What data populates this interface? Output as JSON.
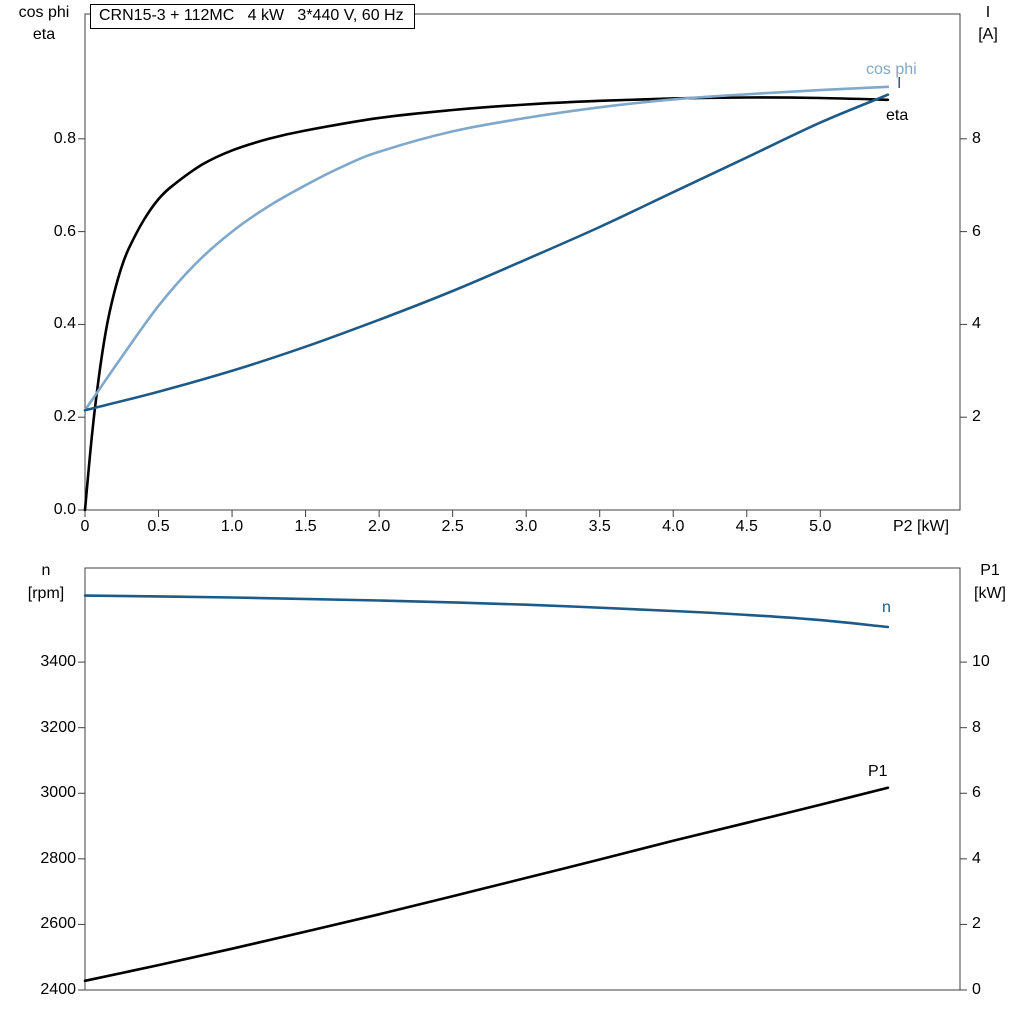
{
  "title_box": {
    "text": "CRN15-3 + 112MC   4 kW   3*440 V, 60 Hz"
  },
  "colors": {
    "black": "#000000",
    "dark_blue": "#1d5a87",
    "light_blue": "#7fa8cb",
    "frame": "#404040"
  },
  "labels": {
    "top_left_1": "cos phi",
    "top_left_2": "eta",
    "top_right_1": "I",
    "top_right_2": "[A]",
    "bottom_left_1": "n",
    "bottom_left_2": "[rpm]",
    "bottom_right_1": "P1",
    "bottom_right_2": "[kW]",
    "x_axis": "P2 [kW]",
    "curve_cos_phi": "cos phi",
    "curve_I": "I",
    "curve_eta": "eta",
    "curve_n": "n",
    "curve_P1": "P1"
  },
  "chart_data": [
    {
      "type": "line",
      "title": "CRN15-3 + 112MC   4 kW   3*440 V, 60 Hz",
      "xlabel": "P2 [kW]",
      "x_range": [
        0,
        5.95
      ],
      "x_ticks": [
        0,
        0.5,
        1,
        1.5,
        2,
        2.5,
        3,
        3.5,
        4,
        4.5,
        5
      ],
      "x_tick_labels": [
        "0",
        "0.5",
        "1.0",
        "1.5",
        "2.0",
        "2.5",
        "3.0",
        "3.5",
        "4.0",
        "4.5",
        "5.0"
      ],
      "left_axis": {
        "label": "cos phi / eta",
        "range": [
          0,
          1.069
        ],
        "ticks": [
          0,
          0.2,
          0.4,
          0.6,
          0.8
        ],
        "tick_labels": [
          "0.0",
          "0.2",
          "0.4",
          "0.6",
          "0.8"
        ]
      },
      "right_axis": {
        "label": "I [A]",
        "range": [
          0,
          10.69
        ],
        "ticks": [
          2,
          4,
          6,
          8
        ],
        "tick_labels": [
          "2",
          "4",
          "6",
          "8"
        ]
      },
      "grid": false,
      "legend_position": "labels-at-line-ends",
      "series": [
        {
          "name": "eta",
          "axis": "left",
          "color_key": "black",
          "x": [
            0,
            0.05,
            0.1,
            0.15,
            0.2,
            0.25,
            0.3,
            0.4,
            0.5,
            0.6,
            0.8,
            1.0,
            1.25,
            1.5,
            2.0,
            2.5,
            3.0,
            3.5,
            4.0,
            4.5,
            5.0,
            5.46
          ],
          "y": [
            0,
            0.17,
            0.3,
            0.4,
            0.47,
            0.525,
            0.565,
            0.625,
            0.67,
            0.7,
            0.745,
            0.775,
            0.8,
            0.818,
            0.845,
            0.862,
            0.874,
            0.882,
            0.887,
            0.889,
            0.888,
            0.884
          ]
        },
        {
          "name": "cos phi",
          "axis": "left",
          "color_key": "light_blue",
          "x": [
            0,
            0.25,
            0.5,
            0.75,
            1.0,
            1.25,
            1.5,
            1.75,
            2.0,
            2.5,
            3.0,
            3.5,
            4.0,
            4.5,
            5.0,
            5.46
          ],
          "y": [
            0.215,
            0.33,
            0.44,
            0.53,
            0.6,
            0.655,
            0.7,
            0.74,
            0.772,
            0.816,
            0.845,
            0.868,
            0.885,
            0.896,
            0.905,
            0.912
          ]
        },
        {
          "name": "I",
          "axis": "right",
          "color_key": "dark_blue",
          "x": [
            0,
            0.5,
            1.0,
            1.5,
            2.0,
            2.5,
            3.0,
            3.5,
            4.0,
            4.5,
            5.0,
            5.46
          ],
          "y": [
            2.15,
            2.55,
            3.0,
            3.52,
            4.1,
            4.72,
            5.4,
            6.1,
            6.85,
            7.6,
            8.35,
            8.95
          ]
        }
      ]
    },
    {
      "type": "line",
      "title": "",
      "xlabel": "",
      "x_range": [
        0,
        5.95
      ],
      "x_ticks": [],
      "x_tick_labels": [],
      "left_axis": {
        "label": "n [rpm]",
        "range": [
          2400,
          3687
        ],
        "ticks": [
          2400,
          2600,
          2800,
          3000,
          3200,
          3400
        ],
        "tick_labels": [
          "2400",
          "2600",
          "2800",
          "3000",
          "3200",
          "3400"
        ]
      },
      "right_axis": {
        "label": "P1 [kW]",
        "range": [
          0,
          12.87
        ],
        "ticks": [
          0,
          2,
          4,
          6,
          8,
          10
        ],
        "tick_labels": [
          "0",
          "2",
          "4",
          "6",
          "8",
          "10"
        ]
      },
      "grid": false,
      "legend_position": "labels-at-line-ends",
      "series": [
        {
          "name": "n",
          "axis": "left",
          "color_key": "dark_blue",
          "x": [
            0,
            1,
            2,
            3,
            4,
            4.5,
            5,
            5.46
          ],
          "y": [
            3603,
            3597,
            3588,
            3575,
            3556,
            3544,
            3528,
            3507
          ]
        },
        {
          "name": "P1",
          "axis": "right",
          "color_key": "black",
          "x": [
            0,
            0.5,
            1,
            1.5,
            2,
            2.5,
            3,
            3.5,
            4,
            4.5,
            5,
            5.46
          ],
          "y": [
            0.28,
            0.76,
            1.26,
            1.78,
            2.31,
            2.86,
            3.42,
            3.98,
            4.55,
            5.1,
            5.65,
            6.17
          ]
        }
      ]
    }
  ]
}
